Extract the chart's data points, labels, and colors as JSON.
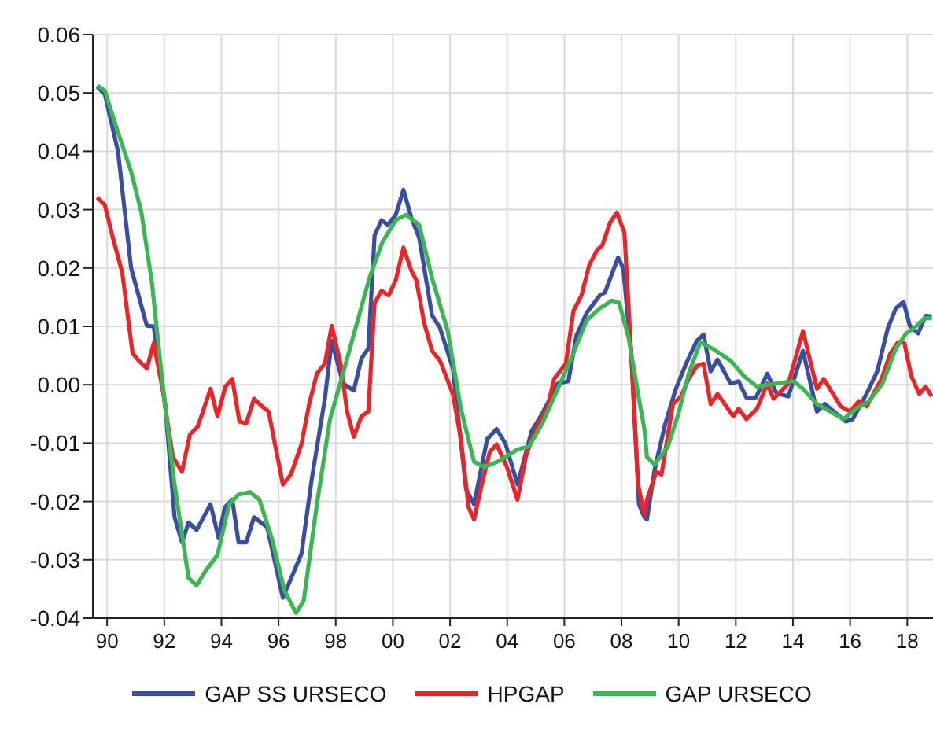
{
  "chart_data": {
    "type": "line",
    "xlim": [
      1989.5,
      2018.9
    ],
    "ylim": [
      -0.04,
      0.06
    ],
    "yticks": [
      -0.04,
      -0.03,
      -0.02,
      -0.01,
      {
        "value": 0,
        "label": "0.00"
      },
      0.01,
      0.02,
      0.03,
      0.04,
      0.05,
      0.06
    ],
    "xticks": [
      {
        "value": 1990,
        "label": "90"
      },
      {
        "value": 1992,
        "label": "92"
      },
      {
        "value": 1994,
        "label": "94"
      },
      {
        "value": 1996,
        "label": "96"
      },
      {
        "value": 1998,
        "label": "98"
      },
      {
        "value": 2000,
        "label": "00"
      },
      {
        "value": 2002,
        "label": "02"
      },
      {
        "value": 2004,
        "label": "04"
      },
      {
        "value": 2006,
        "label": "06"
      },
      {
        "value": 2008,
        "label": "08"
      },
      {
        "value": 2010,
        "label": "10"
      },
      {
        "value": 2012,
        "label": "12"
      },
      {
        "value": 2014,
        "label": "14"
      },
      {
        "value": 2016,
        "label": "16"
      },
      {
        "value": 2018,
        "label": "18"
      }
    ],
    "grid": true,
    "legend": "bottom",
    "line_style": "solid",
    "series": [
      {
        "name": "GAP SS URSECO",
        "color": "#3a4ea0",
        "x": [
          1989.65,
          1989.92,
          1990.38,
          1990.84,
          1991.39,
          1991.63,
          1992.03,
          1992.36,
          1992.62,
          1992.85,
          1993.13,
          1993.62,
          1993.9,
          1994.12,
          1994.38,
          1994.6,
          1994.87,
          1995.14,
          1995.6,
          1996.15,
          1996.8,
          1997.16,
          1997.62,
          1997.86,
          1998.26,
          1998.63,
          1998.9,
          1999.14,
          1999.36,
          1999.6,
          1999.82,
          2000.1,
          2000.37,
          2000.64,
          2000.92,
          2001.37,
          2001.65,
          2002.1,
          2002.56,
          2002.84,
          2003.3,
          2003.63,
          2003.94,
          2004.36,
          2004.85,
          2005.22,
          2005.77,
          2006.14,
          2006.42,
          2006.78,
          2007.24,
          2007.42,
          2007.88,
          2008.06,
          2008.34,
          2008.61,
          2008.8,
          2008.89,
          2009.16,
          2009.53,
          2009.9,
          2010.26,
          2010.63,
          2010.87,
          2011.12,
          2011.36,
          2011.82,
          2012.1,
          2012.37,
          2012.7,
          2013.1,
          2013.43,
          2013.84,
          2014.35,
          2014.84,
          2015.12,
          2015.85,
          2016.09,
          2016.58,
          2016.95,
          2017.32,
          2017.6,
          2017.87,
          2018.09,
          2018.38,
          2018.64,
          2018.86
        ],
        "values": [
          0.0511,
          0.0498,
          0.04,
          0.02,
          0.0101,
          0.01,
          -0.0033,
          -0.0227,
          -0.027,
          -0.0236,
          -0.0249,
          -0.0205,
          -0.0262,
          -0.021,
          -0.0197,
          -0.027,
          -0.027,
          -0.0227,
          -0.0244,
          -0.0365,
          -0.029,
          -0.0162,
          -0.0024,
          0.0075,
          0.0002,
          -0.001,
          0.0045,
          0.0062,
          0.0256,
          0.0282,
          0.0274,
          0.0291,
          0.0334,
          0.0287,
          0.0252,
          0.0119,
          0.0097,
          0.0028,
          -0.0179,
          -0.0205,
          -0.0093,
          -0.0076,
          -0.0101,
          -0.0171,
          -0.008,
          -0.005,
          0.0002,
          0.0006,
          0.0084,
          0.0123,
          0.0153,
          0.0158,
          0.0218,
          0.02,
          0.0054,
          -0.0205,
          -0.0227,
          -0.0231,
          -0.0145,
          -0.0067,
          -0.0007,
          0.0036,
          0.0075,
          0.0086,
          0.0023,
          0.0043,
          0.0002,
          0.0006,
          -0.0022,
          -0.0022,
          0.0019,
          -0.0015,
          -0.002,
          0.0058,
          -0.0046,
          -0.0033,
          -0.0063,
          -0.0059,
          -0.0015,
          0.0023,
          0.0097,
          0.0131,
          0.0142,
          0.0101,
          0.0088,
          0.0118,
          0.0117
        ]
      },
      {
        "name": "HPGAP",
        "color": "#e8262a",
        "x": [
          1989.65,
          1989.92,
          1990.2,
          1990.53,
          1990.89,
          1991.11,
          1991.39,
          1991.63,
          1991.94,
          1992.3,
          1992.62,
          1992.9,
          1993.17,
          1993.62,
          1993.86,
          1994.14,
          1994.38,
          1994.63,
          1994.87,
          1995.14,
          1995.42,
          1995.65,
          1996.15,
          1996.43,
          1996.8,
          1997.07,
          1997.34,
          1997.62,
          1997.86,
          1998.17,
          1998.4,
          1998.63,
          1998.9,
          1999.14,
          1999.36,
          1999.6,
          1999.85,
          2000.1,
          2000.37,
          2000.64,
          2000.82,
          2001.1,
          2001.37,
          2001.65,
          2002.1,
          2002.38,
          2002.65,
          2002.84,
          2003.11,
          2003.39,
          2003.63,
          2003.99,
          2004.36,
          2004.67,
          2005.04,
          2005.4,
          2005.64,
          2006.05,
          2006.32,
          2006.6,
          2006.87,
          2007.15,
          2007.33,
          2007.6,
          2007.84,
          2008.1,
          2008.34,
          2008.58,
          2008.8,
          2008.89,
          2009.22,
          2009.4,
          2009.8,
          2010.08,
          2010.35,
          2010.63,
          2010.87,
          2011.12,
          2011.36,
          2011.91,
          2012.1,
          2012.37,
          2012.74,
          2013.1,
          2013.32,
          2013.84,
          2014.35,
          2014.84,
          2015.08,
          2015.67,
          2016,
          2016.31,
          2016.58,
          2017.1,
          2017.41,
          2017.68,
          2017.9,
          2018.14,
          2018.42,
          2018.64,
          2018.86
        ],
        "values": [
          0.0321,
          0.0308,
          0.0252,
          0.0192,
          0.0054,
          0.0041,
          0.0028,
          0.0071,
          -0.0007,
          -0.0124,
          -0.0149,
          -0.0085,
          -0.0072,
          -0.0007,
          -0.0054,
          -0.0003,
          0.001,
          -0.0063,
          -0.0066,
          -0.0024,
          -0.0037,
          -0.0046,
          -0.0171,
          -0.0154,
          -0.0102,
          -0.0033,
          0.0019,
          0.0036,
          0.0101,
          0.0036,
          -0.0046,
          -0.0089,
          -0.0054,
          -0.0046,
          0.014,
          0.0161,
          0.0153,
          0.0179,
          0.0235,
          0.0196,
          0.0179,
          0.0105,
          0.0058,
          0.0041,
          -0.0016,
          -0.0093,
          -0.021,
          -0.0231,
          -0.0171,
          -0.0115,
          -0.0102,
          -0.0141,
          -0.0197,
          -0.0119,
          -0.0072,
          -0.0041,
          0.001,
          0.0036,
          0.0127,
          0.0153,
          0.0205,
          0.0231,
          0.0239,
          0.0278,
          0.0295,
          0.0261,
          0.0054,
          -0.0171,
          -0.0223,
          -0.0197,
          -0.0149,
          -0.0154,
          -0.0033,
          -0.002,
          0.001,
          0.0032,
          0.0036,
          -0.0033,
          -0.0016,
          -0.0054,
          -0.0041,
          -0.0059,
          -0.0041,
          0.0002,
          -0.0024,
          0.0002,
          0.0092,
          -0.0007,
          0.001,
          -0.0037,
          -0.0046,
          -0.0028,
          -0.0037,
          0.001,
          0.0054,
          0.0073,
          0.0071,
          0.0015,
          -0.0016,
          -0.0003,
          -0.002
        ]
      },
      {
        "name": "GAP URSECO",
        "color": "#3cb554",
        "x": [
          1989.65,
          1989.92,
          1990.29,
          1990.84,
          1991.2,
          1991.57,
          1991.94,
          1992.36,
          1992.85,
          1993.13,
          1993.46,
          1993.86,
          1994.27,
          1994.6,
          1995,
          1995.33,
          1995.78,
          1996.2,
          1996.61,
          1996.88,
          1997.34,
          1997.8,
          1998.35,
          1999.18,
          1999.63,
          2000.1,
          2000.46,
          2000.92,
          2001.37,
          2001.92,
          2002.38,
          2002.84,
          2003.2,
          2003.66,
          2004.36,
          2004.76,
          2005.22,
          2005.77,
          2006.32,
          2006.78,
          2007.24,
          2007.66,
          2007.92,
          2008.25,
          2008.61,
          2008.8,
          2008.89,
          2009.16,
          2009.62,
          2009.99,
          2010.35,
          2010.76,
          2011.18,
          2011.82,
          2012.28,
          2012.74,
          2013.38,
          2014.02,
          2014.35,
          2014.84,
          2015.3,
          2015.76,
          2016.22,
          2016.67,
          2017.13,
          2017.6,
          2017.96,
          2018.24,
          2018.6,
          2018.86
        ],
        "values": [
          0.0513,
          0.0504,
          0.0446,
          0.0365,
          0.0295,
          0.0174,
          0.0002,
          -0.0171,
          -0.0331,
          -0.0344,
          -0.0318,
          -0.0292,
          -0.0205,
          -0.0188,
          -0.0184,
          -0.0197,
          -0.0266,
          -0.0352,
          -0.0391,
          -0.037,
          -0.0205,
          -0.0059,
          0.0036,
          0.0183,
          0.0244,
          0.0282,
          0.0291,
          0.0274,
          0.0183,
          0.0092,
          -0.0041,
          -0.0132,
          -0.0141,
          -0.0132,
          -0.0111,
          -0.0106,
          -0.0067,
          -0.0007,
          0.0054,
          0.011,
          0.0131,
          0.0144,
          0.014,
          0.008,
          -0.0024,
          -0.0076,
          -0.0124,
          -0.0137,
          -0.0106,
          -0.005,
          0.0019,
          0.0073,
          0.0062,
          0.0041,
          0.0015,
          -0.0003,
          0.0002,
          0.0006,
          -0.0007,
          -0.0033,
          -0.0046,
          -0.0059,
          -0.0041,
          -0.0028,
          0.0002,
          0.0062,
          0.0088,
          0.0097,
          0.0114,
          0.0114
        ]
      }
    ]
  }
}
